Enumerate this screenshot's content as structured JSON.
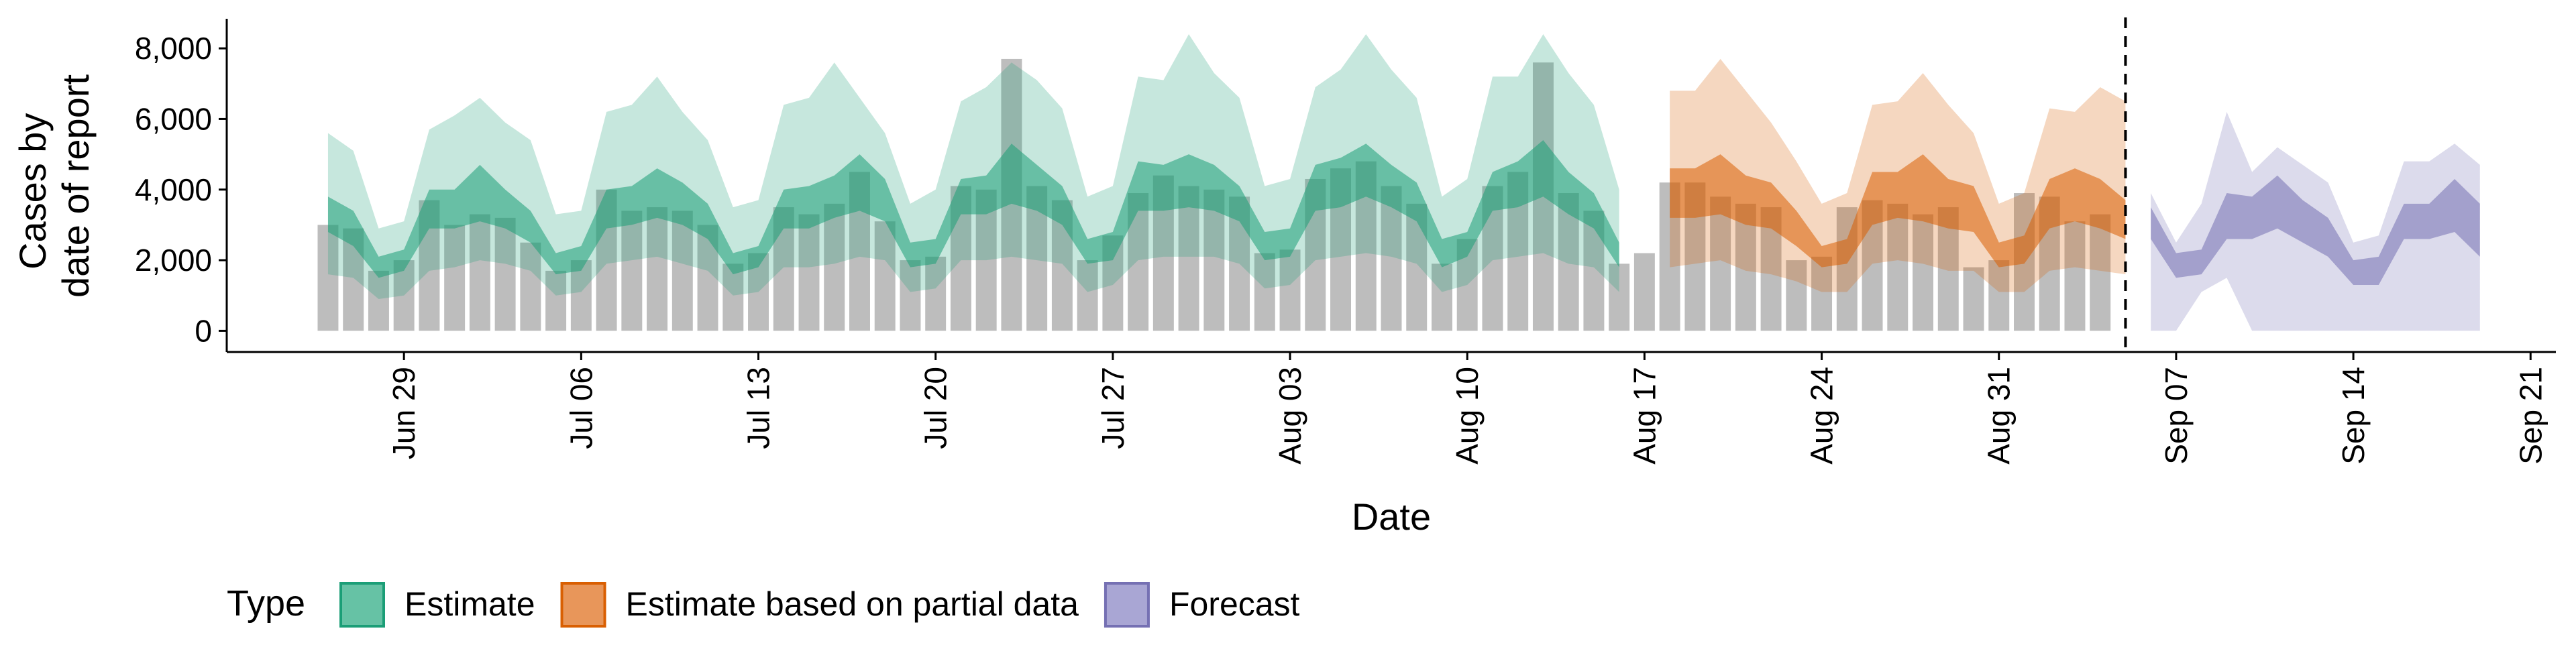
{
  "chart_data": {
    "type": "bar",
    "xlabel": "Date",
    "ylabel_lines": [
      "Cases by",
      "date of report"
    ],
    "ylim": [
      -600,
      8800
    ],
    "y_ticks": [
      0,
      2000,
      4000,
      6000,
      8000
    ],
    "y_tick_labels": [
      "0",
      "2,000",
      "4,000",
      "6,000",
      "8,000"
    ],
    "x_range": [
      "2020-06-22",
      "2020-09-22"
    ],
    "x_ticks": [
      "2020-06-29",
      "2020-07-06",
      "2020-07-13",
      "2020-07-20",
      "2020-07-27",
      "2020-08-03",
      "2020-08-10",
      "2020-08-17",
      "2020-08-24",
      "2020-08-31",
      "2020-09-07",
      "2020-09-14",
      "2020-09-21"
    ],
    "x_tick_labels": [
      "Jun 29",
      "Jul 06",
      "Jul 13",
      "Jul 20",
      "Jul 27",
      "Aug 03",
      "Aug 10",
      "Aug 17",
      "Aug 24",
      "Aug 31",
      "Sep 07",
      "Sep 14",
      "Sep 21"
    ],
    "forecast_cutoff": "2020-09-05",
    "legend": {
      "title": "Type",
      "position": "bottom",
      "items": [
        {
          "label": "Estimate",
          "fill": "#66c2a5",
          "stroke": "#1b9e77"
        },
        {
          "label": "Estimate based on partial data",
          "fill": "#e8965a",
          "stroke": "#d95f02"
        },
        {
          "label": "Forecast",
          "fill": "#a9a6d4",
          "stroke": "#7570b3"
        }
      ]
    },
    "colors": {
      "bars": "#bdbdbd",
      "estimate": "#1b9e77",
      "partial": "#d95f02",
      "forecast": "#7570b3"
    },
    "reported_cases": {
      "start_date": "2020-06-26",
      "values": [
        3000,
        2900,
        1700,
        2000,
        3700,
        3000,
        3300,
        3200,
        2500,
        1700,
        2000,
        4000,
        3400,
        3500,
        3400,
        3000,
        1900,
        2200,
        3500,
        3300,
        3600,
        4500,
        3100,
        2000,
        2100,
        4100,
        4000,
        7700,
        4100,
        3700,
        2000,
        2700,
        3900,
        4400,
        4100,
        4000,
        3800,
        2200,
        2300,
        4300,
        4600,
        4800,
        4100,
        3600,
        1900,
        2600,
        4100,
        4500,
        7600,
        3900,
        3400,
        1900,
        2200,
        4200,
        4200,
        3800,
        3600,
        3500,
        2000,
        2100,
        3500,
        3700,
        3600,
        3300,
        3500,
        1800,
        2000,
        3900,
        3800,
        3100,
        3300
      ]
    },
    "series": [
      {
        "name": "Estimate",
        "start_date": "2020-06-26",
        "outer_lower": [
          1600,
          1500,
          900,
          1000,
          1700,
          1800,
          2000,
          1900,
          1700,
          1000,
          1100,
          1900,
          2000,
          2100,
          1900,
          1700,
          1000,
          1100,
          1800,
          1800,
          1900,
          2100,
          2000,
          1100,
          1200,
          2000,
          2000,
          2100,
          2000,
          1900,
          1100,
          1300,
          2000,
          2100,
          2100,
          2100,
          1900,
          1200,
          1300,
          2000,
          2100,
          2200,
          2100,
          1900,
          1100,
          1300,
          2000,
          2100,
          2200,
          1900,
          1800,
          1100
        ],
        "inner_lower": [
          2800,
          2400,
          1500,
          1700,
          2900,
          2900,
          3100,
          2900,
          2500,
          1600,
          1700,
          2900,
          3000,
          3200,
          3000,
          2600,
          1600,
          1800,
          2900,
          2900,
          3200,
          3400,
          3100,
          1800,
          1900,
          3300,
          3300,
          3600,
          3400,
          3000,
          1900,
          2000,
          3400,
          3400,
          3500,
          3400,
          3100,
          2000,
          2100,
          3400,
          3500,
          3800,
          3500,
          3100,
          1800,
          2100,
          3400,
          3500,
          3800,
          3300,
          2900,
          1800
        ],
        "inner_upper": [
          3800,
          3400,
          2100,
          2300,
          4000,
          4000,
          4700,
          4000,
          3400,
          2200,
          2400,
          4000,
          4100,
          4600,
          4200,
          3600,
          2200,
          2400,
          4000,
          4100,
          4400,
          5000,
          4300,
          2500,
          2600,
          4300,
          4400,
          5300,
          4700,
          4100,
          2600,
          2800,
          4800,
          4700,
          5000,
          4700,
          4100,
          2800,
          2900,
          4700,
          4900,
          5300,
          4700,
          4200,
          2600,
          2800,
          4500,
          4800,
          5400,
          4500,
          3900,
          2500
        ],
        "outer_upper": [
          5600,
          5100,
          2900,
          3100,
          5700,
          6100,
          6600,
          5900,
          5400,
          3300,
          3400,
          6200,
          6400,
          7200,
          6200,
          5400,
          3500,
          3700,
          6400,
          6600,
          7600,
          6600,
          5600,
          3600,
          4000,
          6500,
          6900,
          7600,
          7100,
          6300,
          3800,
          4100,
          7200,
          7100,
          8400,
          7300,
          6600,
          4100,
          4300,
          6900,
          7400,
          8400,
          7400,
          6600,
          3800,
          4300,
          7200,
          7200,
          8400,
          7300,
          6400,
          4000
        ]
      },
      {
        "name": "Estimate based on partial data",
        "start_date": "2020-08-18",
        "outer_lower": [
          1800,
          1900,
          2000,
          1700,
          1600,
          1400,
          1100,
          1100,
          1900,
          2000,
          1900,
          1700,
          1700,
          1100,
          1100,
          1700,
          1800,
          1700,
          1600
        ],
        "inner_lower": [
          3200,
          3200,
          3300,
          3000,
          2900,
          2400,
          1800,
          1900,
          3000,
          3200,
          3100,
          2900,
          2800,
          1800,
          1900,
          2900,
          3100,
          2900,
          2600
        ],
        "inner_upper": [
          4600,
          4600,
          5000,
          4400,
          4200,
          3400,
          2400,
          2600,
          4500,
          4500,
          5000,
          4300,
          4100,
          2500,
          2700,
          4300,
          4600,
          4300,
          3700
        ],
        "outer_upper": [
          6800,
          6800,
          7700,
          6800,
          5900,
          4800,
          3600,
          3900,
          6400,
          6500,
          7300,
          6400,
          5600,
          3600,
          3900,
          6300,
          6200,
          6900,
          6500
        ]
      },
      {
        "name": "Forecast",
        "start_date": "2020-09-06",
        "outer_lower": [
          0,
          0,
          1100,
          1500,
          0,
          0,
          0,
          0,
          0,
          0,
          0,
          0,
          0,
          0
        ],
        "inner_lower": [
          2600,
          1500,
          1600,
          2600,
          2600,
          2900,
          2500,
          2100,
          1300,
          1300,
          2600,
          2600,
          2800,
          2100
        ],
        "inner_upper": [
          3500,
          2200,
          2300,
          3900,
          3800,
          4400,
          3700,
          3200,
          2000,
          2100,
          3600,
          3600,
          4300,
          3600
        ],
        "outer_upper": [
          3900,
          2500,
          3600,
          6200,
          4500,
          5200,
          4700,
          4200,
          2500,
          2700,
          4800,
          4800,
          5300,
          4700
        ]
      }
    ]
  }
}
